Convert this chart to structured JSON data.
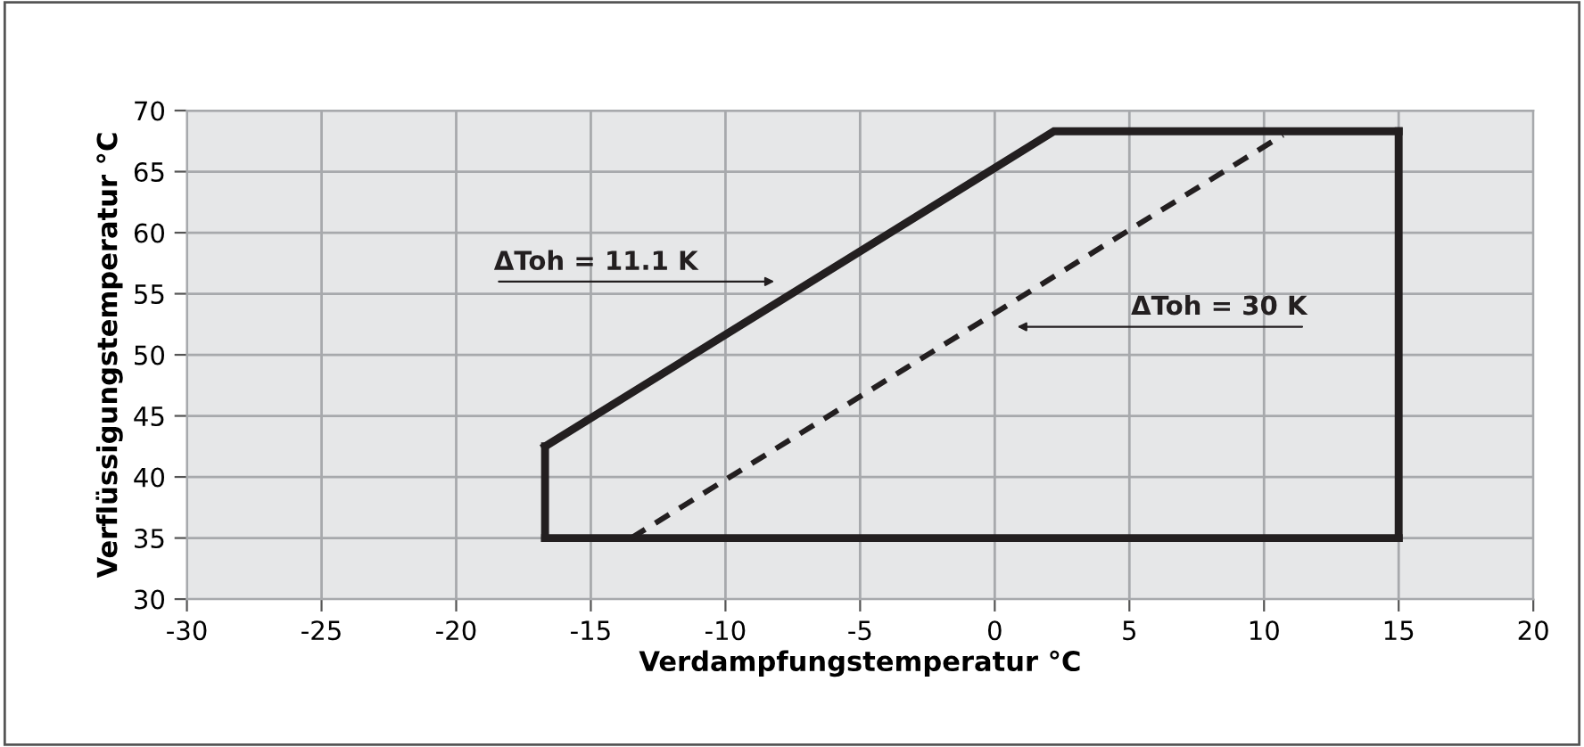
{
  "chart_data": {
    "type": "line",
    "xlabel": "Verdampfungstemperatur °C",
    "ylabel": "Verflüssigungstemperatur °C",
    "series": [
      {
        "x": [
          -16.7,
          2.2,
          15
        ],
        "values": [
          42.5,
          68.3,
          68.3
        ],
        "color": "#231f20",
        "line_style": "solid"
      },
      {
        "x": [
          -16.7,
          15
        ],
        "values": [
          35,
          35
        ],
        "color": "#231f20",
        "line_style": "solid"
      },
      {
        "x": [
          -16.7,
          -16.7
        ],
        "values": [
          35,
          42.5
        ],
        "color": "#231f20",
        "line_style": "solid"
      },
      {
        "x": [
          15,
          15
        ],
        "values": [
          35,
          68.3
        ],
        "color": "#231f20",
        "line_style": "solid"
      },
      {
        "x": [
          -13.5,
          10.7
        ],
        "values": [
          35,
          68.0
        ],
        "color": "#231f20",
        "line_style": "dashed"
      }
    ],
    "annotations": [
      "ΔToh = 11.1 K",
      "ΔToh = 30 K"
    ],
    "xlim": [
      -30,
      20
    ],
    "xticks": [
      -30,
      -25,
      -20,
      -15,
      -10,
      -5,
      0,
      5,
      10,
      15,
      20
    ],
    "ylim": [
      30,
      70
    ],
    "yticks": [
      30,
      35,
      40,
      45,
      50,
      55,
      60,
      65,
      70
    ],
    "grid": true,
    "legend": false,
    "marker": "none"
  }
}
